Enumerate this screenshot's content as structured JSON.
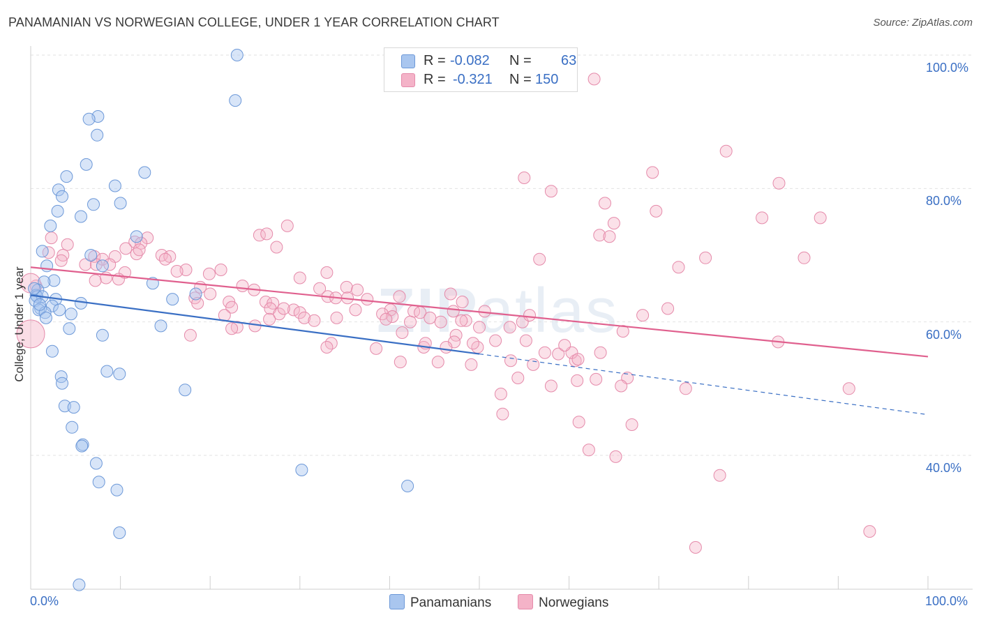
{
  "title": "PANAMANIAN VS NORWEGIAN COLLEGE, UNDER 1 YEAR CORRELATION CHART",
  "source": "Source: ZipAtlas.com",
  "watermark": {
    "bold": "ZIP",
    "light": "atlas"
  },
  "legend": {
    "rows": [
      {
        "r_label": "R =",
        "r_value": "-0.082",
        "n_label": "N =",
        "n_value": "63"
      },
      {
        "r_label": "R =",
        "r_value": "-0.321",
        "n_label": "N =",
        "n_value": "150"
      }
    ]
  },
  "colors": {
    "blue": "#3a6fc4",
    "blue_fill": "#a9c6ef",
    "pink": "#e0608e",
    "pink_fill": "#f4b3c8"
  },
  "chart_data": {
    "type": "scatter",
    "title": "PANAMANIAN VS NORWEGIAN COLLEGE, UNDER 1 YEAR CORRELATION CHART",
    "xlabel": "",
    "ylabel": "College, Under 1 year",
    "xlim": [
      0,
      100
    ],
    "ylim": [
      20,
      102
    ],
    "x_tick_labels": [
      "0.0%",
      "100.0%"
    ],
    "y_ticks": [
      40,
      60,
      80,
      100
    ],
    "y_tick_labels": [
      "40.0%",
      "60.0%",
      "80.0%",
      "100.0%"
    ],
    "legend_position": "bottom-center",
    "series": [
      {
        "name": "Panamanians",
        "r": -0.082,
        "n": 63,
        "trend": {
          "x0": 0,
          "y0": 64,
          "x1": 50,
          "y1": 55.2,
          "dashed_to_x": 100,
          "dashed_to_y": 46.1
        },
        "points": [
          [
            23.0,
            100.0
          ],
          [
            22.8,
            93.2
          ],
          [
            7.5,
            90.8
          ],
          [
            6.5,
            90.4
          ],
          [
            7.4,
            88.0
          ],
          [
            6.2,
            83.6
          ],
          [
            12.7,
            82.4
          ],
          [
            4.0,
            81.8
          ],
          [
            9.4,
            80.4
          ],
          [
            3.1,
            79.8
          ],
          [
            3.5,
            78.8
          ],
          [
            10.0,
            77.8
          ],
          [
            7.0,
            77.6
          ],
          [
            3.0,
            76.6
          ],
          [
            5.6,
            75.8
          ],
          [
            2.2,
            74.4
          ],
          [
            11.8,
            72.8
          ],
          [
            1.3,
            70.6
          ],
          [
            6.7,
            70.0
          ],
          [
            1.8,
            68.4
          ],
          [
            8.0,
            68.4
          ],
          [
            2.6,
            66.2
          ],
          [
            1.5,
            66.0
          ],
          [
            13.6,
            65.8
          ],
          [
            0.8,
            64.8
          ],
          [
            0.6,
            64.0
          ],
          [
            0.7,
            63.8
          ],
          [
            1.3,
            63.8
          ],
          [
            0.5,
            63.2
          ],
          [
            2.8,
            63.4
          ],
          [
            15.8,
            63.4
          ],
          [
            18.4,
            64.2
          ],
          [
            5.6,
            62.8
          ],
          [
            2.4,
            62.4
          ],
          [
            1.1,
            62.0
          ],
          [
            0.9,
            61.8
          ],
          [
            3.2,
            61.8
          ],
          [
            1.6,
            61.4
          ],
          [
            4.5,
            61.2
          ],
          [
            1.7,
            60.6
          ],
          [
            4.3,
            59.0
          ],
          [
            14.5,
            59.4
          ],
          [
            8.0,
            58.0
          ],
          [
            2.4,
            55.6
          ],
          [
            8.5,
            52.6
          ],
          [
            9.9,
            52.2
          ],
          [
            3.4,
            51.8
          ],
          [
            3.5,
            50.8
          ],
          [
            17.2,
            49.8
          ],
          [
            3.8,
            47.4
          ],
          [
            4.8,
            47.2
          ],
          [
            4.6,
            44.2
          ],
          [
            5.8,
            41.6
          ],
          [
            5.7,
            41.4
          ],
          [
            7.3,
            38.8
          ],
          [
            30.2,
            37.8
          ],
          [
            7.6,
            36.0
          ],
          [
            42.0,
            35.4
          ],
          [
            9.6,
            34.8
          ],
          [
            9.9,
            28.4
          ],
          [
            5.4,
            20.6
          ],
          [
            0.4,
            65.0
          ],
          [
            1.0,
            62.6
          ]
        ]
      },
      {
        "name": "Norwegians",
        "r": -0.321,
        "n": 150,
        "trend": {
          "x0": 0,
          "y0": 68.2,
          "x1": 100,
          "y1": 54.8
        },
        "points": [
          [
            62.8,
            96.4
          ],
          [
            77.5,
            85.6
          ],
          [
            69.3,
            82.4
          ],
          [
            55.0,
            81.6
          ],
          [
            83.4,
            80.8
          ],
          [
            58.0,
            79.6
          ],
          [
            64.0,
            77.8
          ],
          [
            69.7,
            76.6
          ],
          [
            81.5,
            75.6
          ],
          [
            88.0,
            75.6
          ],
          [
            65.0,
            74.8
          ],
          [
            28.6,
            74.4
          ],
          [
            25.5,
            73.0
          ],
          [
            26.3,
            73.2
          ],
          [
            63.4,
            73.0
          ],
          [
            64.5,
            72.8
          ],
          [
            2.3,
            72.6
          ],
          [
            13.0,
            72.6
          ],
          [
            11.6,
            72.0
          ],
          [
            4.1,
            71.6
          ],
          [
            12.3,
            71.8
          ],
          [
            10.6,
            71.0
          ],
          [
            27.4,
            71.2
          ],
          [
            2.0,
            70.4
          ],
          [
            3.6,
            70.0
          ],
          [
            7.1,
            69.8
          ],
          [
            9.4,
            69.8
          ],
          [
            14.6,
            70.0
          ],
          [
            15.5,
            69.8
          ],
          [
            11.8,
            70.2
          ],
          [
            15.0,
            69.4
          ],
          [
            8.0,
            69.4
          ],
          [
            3.4,
            69.2
          ],
          [
            6.1,
            68.6
          ],
          [
            7.3,
            68.6
          ],
          [
            8.8,
            68.6
          ],
          [
            56.7,
            69.4
          ],
          [
            75.2,
            69.6
          ],
          [
            86.2,
            69.6
          ],
          [
            72.2,
            68.2
          ],
          [
            17.3,
            67.8
          ],
          [
            16.3,
            67.6
          ],
          [
            21.2,
            67.8
          ],
          [
            10.5,
            67.4
          ],
          [
            19.9,
            67.2
          ],
          [
            33.0,
            67.4
          ],
          [
            30.0,
            66.6
          ],
          [
            8.4,
            66.6
          ],
          [
            9.8,
            66.4
          ],
          [
            7.2,
            66.2
          ],
          [
            0.6,
            65.4
          ],
          [
            18.9,
            65.2
          ],
          [
            23.6,
            65.4
          ],
          [
            32.2,
            65.0
          ],
          [
            35.2,
            65.2
          ],
          [
            36.4,
            64.8
          ],
          [
            46.8,
            64.2
          ],
          [
            24.9,
            64.8
          ],
          [
            20.0,
            64.2
          ],
          [
            18.3,
            63.6
          ],
          [
            33.1,
            63.8
          ],
          [
            34.0,
            63.6
          ],
          [
            35.3,
            63.6
          ],
          [
            37.5,
            63.4
          ],
          [
            41.1,
            63.8
          ],
          [
            22.1,
            63.0
          ],
          [
            26.2,
            63.0
          ],
          [
            27.0,
            62.8
          ],
          [
            18.6,
            62.8
          ],
          [
            48.1,
            63.0
          ],
          [
            22.4,
            62.2
          ],
          [
            26.7,
            62.0
          ],
          [
            29.3,
            61.8
          ],
          [
            30.0,
            61.4
          ],
          [
            36.2,
            61.8
          ],
          [
            40.1,
            61.8
          ],
          [
            42.7,
            61.6
          ],
          [
            43.4,
            61.4
          ],
          [
            47.1,
            61.6
          ],
          [
            71.0,
            62.0
          ],
          [
            39.2,
            61.2
          ],
          [
            40.3,
            60.8
          ],
          [
            30.5,
            60.6
          ],
          [
            31.6,
            60.2
          ],
          [
            34.1,
            60.6
          ],
          [
            27.7,
            61.2
          ],
          [
            21.6,
            61.0
          ],
          [
            39.6,
            60.4
          ],
          [
            42.3,
            60.0
          ],
          [
            44.5,
            60.6
          ],
          [
            45.7,
            60.0
          ],
          [
            48.5,
            60.2
          ],
          [
            50.6,
            61.6
          ],
          [
            54.8,
            60.0
          ],
          [
            68.2,
            61.0
          ],
          [
            50.0,
            59.2
          ],
          [
            53.4,
            59.2
          ],
          [
            26.6,
            60.4
          ],
          [
            23.0,
            59.2
          ],
          [
            22.4,
            59.0
          ],
          [
            25.0,
            59.4
          ],
          [
            17.8,
            58.0
          ],
          [
            66.0,
            58.6
          ],
          [
            41.4,
            58.4
          ],
          [
            47.4,
            58.0
          ],
          [
            47.2,
            57.0
          ],
          [
            51.8,
            57.2
          ],
          [
            55.2,
            57.2
          ],
          [
            83.3,
            57.0
          ],
          [
            33.5,
            56.8
          ],
          [
            46.3,
            56.2
          ],
          [
            33.0,
            56.2
          ],
          [
            38.5,
            56.0
          ],
          [
            43.8,
            56.2
          ],
          [
            49.8,
            56.2
          ],
          [
            44.0,
            56.8
          ],
          [
            49.3,
            56.8
          ],
          [
            63.5,
            55.4
          ],
          [
            57.3,
            55.4
          ],
          [
            58.8,
            55.2
          ],
          [
            60.7,
            54.2
          ],
          [
            53.5,
            54.2
          ],
          [
            56.0,
            53.6
          ],
          [
            41.2,
            54.0
          ],
          [
            45.4,
            54.0
          ],
          [
            49.1,
            53.6
          ],
          [
            60.9,
            51.2
          ],
          [
            63.0,
            51.4
          ],
          [
            66.5,
            51.6
          ],
          [
            65.8,
            50.4
          ],
          [
            58.0,
            50.4
          ],
          [
            54.3,
            51.6
          ],
          [
            73.0,
            50.0
          ],
          [
            91.2,
            50.0
          ],
          [
            52.4,
            49.2
          ],
          [
            52.6,
            46.2
          ],
          [
            61.1,
            45.0
          ],
          [
            67.0,
            44.6
          ],
          [
            62.2,
            40.8
          ],
          [
            65.2,
            39.8
          ],
          [
            76.8,
            37.0
          ],
          [
            93.5,
            28.6
          ],
          [
            74.1,
            26.2
          ],
          [
            60.3,
            55.4
          ],
          [
            48.0,
            60.2
          ],
          [
            61.0,
            54.4
          ],
          [
            55.6,
            61.0
          ],
          [
            28.2,
            62.0
          ],
          [
            59.5,
            56.5
          ],
          [
            12.1,
            70.8
          ]
        ]
      }
    ]
  },
  "axis": {
    "y_title": "College, Under 1 year",
    "x_min_label": "0.0%",
    "x_max_label": "100.0%"
  }
}
